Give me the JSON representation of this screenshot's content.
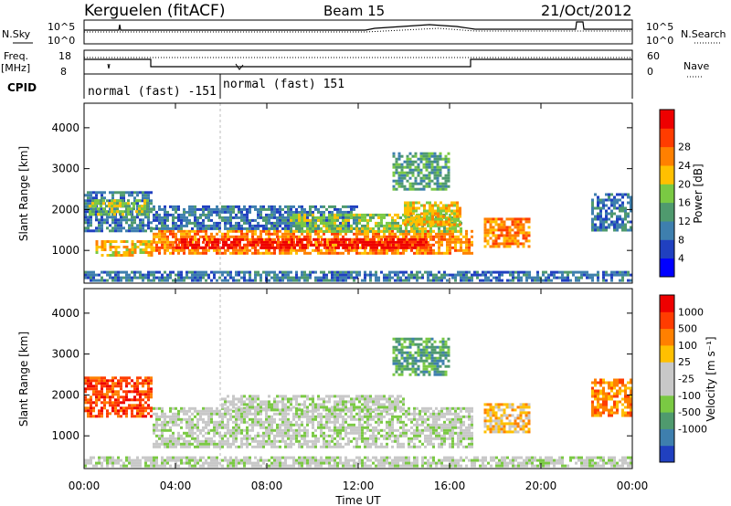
{
  "header": {
    "station": "Kerguelen (fitACF)",
    "beam": "Beam 15",
    "date": "21/Oct/2012"
  },
  "param_strip": {
    "nsky_label": "N.Sky",
    "nsky_ticks": [
      "10^5",
      "10^0"
    ],
    "nsearch_label": "N.Search",
    "nsearch_ticks": [
      "10^5",
      "10^0"
    ],
    "freq_label": "Freq.",
    "freq_unit": "[MHz]",
    "freq_ticks": [
      "18",
      "8"
    ],
    "nave_label": "Nave",
    "nave_ticks": [
      "60",
      "0"
    ],
    "cpid_label": "CPID",
    "cpid_segments": [
      "normal (fast) -151",
      "normal (fast) 151"
    ]
  },
  "chart_data": [
    {
      "type": "heatmap",
      "quantity": "power",
      "x": [
        "00:00",
        "04:00",
        "08:00",
        "12:00",
        "16:00",
        "20:00",
        "00:00"
      ],
      "ylabel": "Slant Range [km]",
      "yticks": [
        "1000",
        "2000",
        "3000",
        "4000"
      ],
      "ylim": [
        200,
        4600
      ],
      "colorbar_label": "Power [dB]",
      "colorbar_ticks": [
        "4",
        "8",
        "12",
        "16",
        "20",
        "24",
        "28"
      ],
      "colors": [
        "#0000ff",
        "#2040c0",
        "#3e7fae",
        "#4f9a6e",
        "#7ac943",
        "#ffc000",
        "#ff8000",
        "#ff3c00",
        "#ee0000"
      ],
      "echo_regions": [
        {
          "t0": 0.0,
          "t1": 3.0,
          "r0": 1500,
          "r1": 2450,
          "level": 2
        },
        {
          "t0": 0.2,
          "t1": 2.8,
          "r0": 1900,
          "r1": 2250,
          "level": 4
        },
        {
          "t0": 0.5,
          "t1": 3.0,
          "r0": 850,
          "r1": 1250,
          "level": 5
        },
        {
          "t0": 3.0,
          "t1": 17.0,
          "r0": 900,
          "r1": 1500,
          "level": 6
        },
        {
          "t0": 4.0,
          "t1": 15.0,
          "r0": 1050,
          "r1": 1300,
          "level": 8
        },
        {
          "t0": 3.0,
          "t1": 12.0,
          "r0": 1500,
          "r1": 2100,
          "level": 2
        },
        {
          "t0": 9.0,
          "t1": 16.5,
          "r0": 1450,
          "r1": 1900,
          "level": 4
        },
        {
          "t0": 13.5,
          "t1": 16.0,
          "r0": 2500,
          "r1": 3400,
          "level": 3
        },
        {
          "t0": 14.0,
          "t1": 16.5,
          "r0": 1600,
          "r1": 2200,
          "level": 5
        },
        {
          "t0": 17.5,
          "t1": 19.5,
          "r0": 1100,
          "r1": 1800,
          "level": 6
        },
        {
          "t0": 22.2,
          "t1": 24.0,
          "r0": 1500,
          "r1": 2400,
          "level": 2
        },
        {
          "t0": 0.0,
          "t1": 24.0,
          "r0": 250,
          "r1": 500,
          "level": 2
        }
      ]
    },
    {
      "type": "heatmap",
      "quantity": "velocity",
      "x": [
        "00:00",
        "04:00",
        "08:00",
        "12:00",
        "16:00",
        "20:00",
        "00:00"
      ],
      "xlabel": "Time UT",
      "ylabel": "Slant Range [km]",
      "yticks": [
        "1000",
        "2000",
        "3000",
        "4000"
      ],
      "ylim": [
        200,
        4600
      ],
      "colorbar_label": "Velocity [m s⁻¹]",
      "colorbar_ticks": [
        "1000",
        "500",
        "100",
        "25",
        "-25",
        "-100",
        "-500",
        "-1000"
      ],
      "colors": [
        "#2040c0",
        "#3e7fae",
        "#4f9a6e",
        "#7ac943",
        "#c8c8c8",
        "#c8c8c8",
        "#ffc000",
        "#ff8000",
        "#ff3c00",
        "#ee0000"
      ],
      "echo_regions": [
        {
          "t0": 0.0,
          "t1": 3.0,
          "r0": 1500,
          "r1": 2450,
          "level": 8
        },
        {
          "t0": 3.0,
          "t1": 17.0,
          "r0": 700,
          "r1": 1700,
          "level": 4
        },
        {
          "t0": 6.0,
          "t1": 14.0,
          "r0": 1600,
          "r1": 2000,
          "level": 4
        },
        {
          "t0": 13.5,
          "t1": 16.0,
          "r0": 2500,
          "r1": 3400,
          "level": 2
        },
        {
          "t0": 17.5,
          "t1": 19.5,
          "r0": 1100,
          "r1": 1800,
          "level": 6
        },
        {
          "t0": 22.2,
          "t1": 24.0,
          "r0": 1500,
          "r1": 2400,
          "level": 7
        },
        {
          "t0": 0.0,
          "t1": 24.0,
          "r0": 250,
          "r1": 500,
          "level": 4
        }
      ]
    }
  ]
}
